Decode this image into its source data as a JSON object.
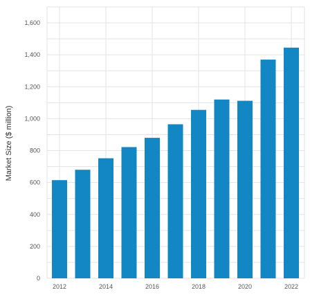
{
  "chart_data": {
    "type": "bar",
    "title": "",
    "xlabel": "",
    "ylabel": "Market Size ($ million)",
    "ylim": [
      0,
      1700
    ],
    "yticks": [
      0,
      200,
      400,
      600,
      800,
      1000,
      1200,
      1400,
      1600
    ],
    "ytick_labels": [
      "0",
      "200",
      "400",
      "600",
      "800",
      "1,000",
      "1,200",
      "1,400",
      "1,600"
    ],
    "categories": [
      "2012",
      "2013",
      "2014",
      "2015",
      "2016",
      "2017",
      "2018",
      "2019",
      "2020",
      "2021",
      "2022"
    ],
    "xtick_labels": [
      "2012",
      "",
      "2014",
      "",
      "2016",
      "",
      "2018",
      "",
      "2020",
      "",
      "2022"
    ],
    "values": [
      615,
      680,
      752,
      822,
      880,
      965,
      1055,
      1120,
      1112,
      1370,
      1445
    ],
    "grid": true,
    "bar_color": "#1287c4",
    "grid_color": "#e3e3e3"
  }
}
